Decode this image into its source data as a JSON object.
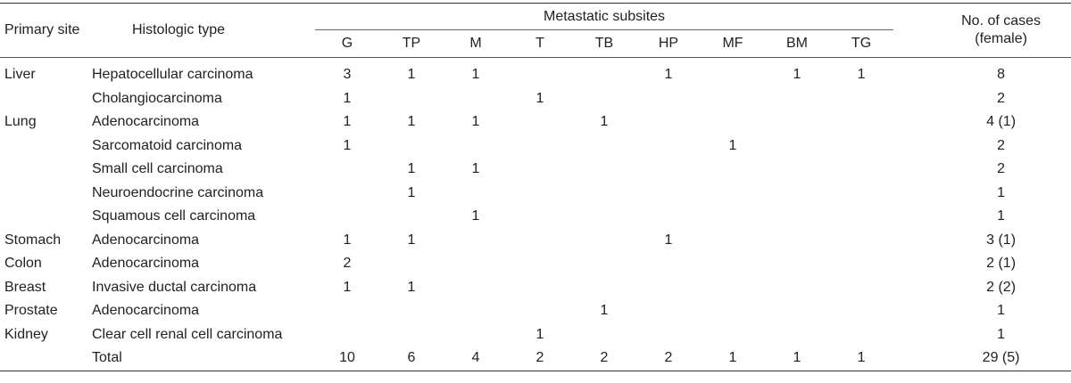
{
  "table": {
    "headers": {
      "primary_site": "Primary site",
      "histologic_type": "Histologic type",
      "metastatic_subsites": "Metastatic subsites",
      "no_of_cases": "No. of cases",
      "female": "(female)",
      "subsites": [
        "G",
        "TP",
        "M",
        "T",
        "TB",
        "HP",
        "MF",
        "BM",
        "TG"
      ]
    },
    "rows": [
      {
        "site": "Liver",
        "type": "Hepatocellular carcinoma",
        "vals": [
          "3",
          "1",
          "1",
          "",
          "",
          "1",
          "",
          "1",
          "1"
        ],
        "cases": "8"
      },
      {
        "site": "",
        "type": "Cholangiocarcinoma",
        "vals": [
          "1",
          "",
          "",
          "1",
          "",
          "",
          "",
          "",
          ""
        ],
        "cases": "2"
      },
      {
        "site": "Lung",
        "type": "Adenocarcinoma",
        "vals": [
          "1",
          "1",
          "1",
          "",
          "1",
          "",
          "",
          "",
          ""
        ],
        "cases": "4 (1)"
      },
      {
        "site": "",
        "type": "Sarcomatoid carcinoma",
        "vals": [
          "1",
          "",
          "",
          "",
          "",
          "",
          "1",
          "",
          ""
        ],
        "cases": "2"
      },
      {
        "site": "",
        "type": "Small cell carcinoma",
        "vals": [
          "",
          "1",
          "1",
          "",
          "",
          "",
          "",
          "",
          ""
        ],
        "cases": "2"
      },
      {
        "site": "",
        "type": "Neuroendocrine carcinoma",
        "vals": [
          "",
          "1",
          "",
          "",
          "",
          "",
          "",
          "",
          ""
        ],
        "cases": "1"
      },
      {
        "site": "",
        "type": "Squamous cell carcinoma",
        "vals": [
          "",
          "",
          "1",
          "",
          "",
          "",
          "",
          "",
          ""
        ],
        "cases": "1"
      },
      {
        "site": "Stomach",
        "type": "Adenocarcinoma",
        "vals": [
          "1",
          "1",
          "",
          "",
          "",
          "1",
          "",
          "",
          ""
        ],
        "cases": "3 (1)"
      },
      {
        "site": "Colon",
        "type": "Adenocarcinoma",
        "vals": [
          "2",
          "",
          "",
          "",
          "",
          "",
          "",
          "",
          ""
        ],
        "cases": "2 (1)"
      },
      {
        "site": "Breast",
        "type": "Invasive ductal carcinoma",
        "vals": [
          "1",
          "1",
          "",
          "",
          "",
          "",
          "",
          "",
          ""
        ],
        "cases": "2 (2)"
      },
      {
        "site": "Prostate",
        "type": "Adenocarcinoma",
        "vals": [
          "",
          "",
          "",
          "",
          "1",
          "",
          "",
          "",
          ""
        ],
        "cases": "1"
      },
      {
        "site": "Kidney",
        "type": "Clear cell renal cell carcinoma",
        "vals": [
          "",
          "",
          "",
          "1",
          "",
          "",
          "",
          "",
          ""
        ],
        "cases": "1"
      },
      {
        "site": "",
        "type": "Total",
        "vals": [
          "10",
          "6",
          "4",
          "2",
          "2",
          "2",
          "1",
          "1",
          "1"
        ],
        "cases": "29 (5)"
      }
    ]
  }
}
